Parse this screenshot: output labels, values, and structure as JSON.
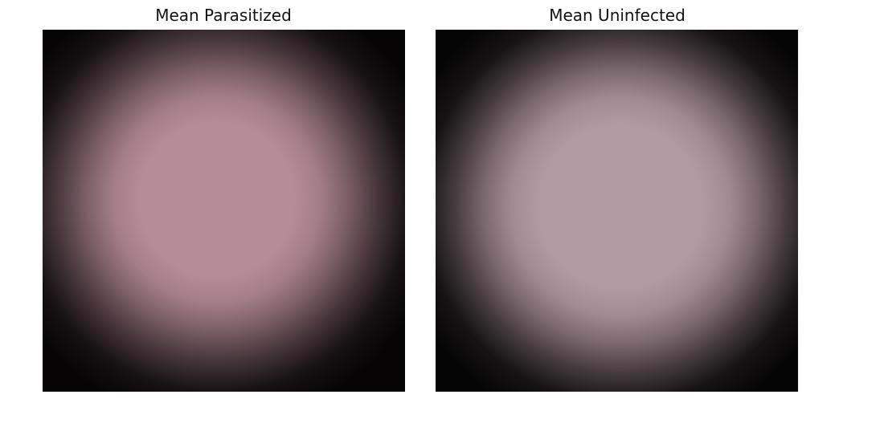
{
  "panels": [
    {
      "title": "Mean Parasitized",
      "center_color": "#b68c98",
      "edge_color": "#0c0a0b"
    },
    {
      "title": "Mean Uninfected",
      "center_color": "#b39aa2",
      "edge_color": "#0c0a0b"
    }
  ]
}
